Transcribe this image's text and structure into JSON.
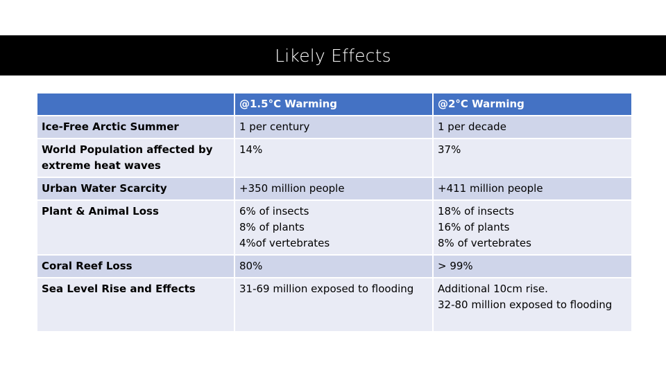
{
  "slide": {
    "title": "Likely Effects"
  },
  "table": {
    "headers": [
      "",
      "@1.5°C Warming",
      "@2°C Warming"
    ],
    "rows": [
      {
        "label": "Ice-Free Arctic Summer",
        "c15": [
          "1 per century"
        ],
        "c2": [
          "1 per decade"
        ]
      },
      {
        "label": "World Population affected by extreme heat waves",
        "c15": [
          "14%"
        ],
        "c2": [
          "37%"
        ]
      },
      {
        "label": "Urban Water Scarcity",
        "c15": [
          "+350 million people"
        ],
        "c2": [
          "+411 million people"
        ]
      },
      {
        "label": "Plant & Animal Loss",
        "c15": [
          "6% of insects",
          "8% of plants",
          "4%of vertebrates"
        ],
        "c2": [
          "18% of insects",
          "16% of plants",
          "8% of vertebrates"
        ]
      },
      {
        "label": "Coral Reef Loss",
        "c15": [
          "80%"
        ],
        "c2": [
          "> 99%"
        ]
      },
      {
        "label": "Sea Level Rise and Effects",
        "c15": [
          "31-69 million exposed to flooding"
        ],
        "c2": [
          "Additional 10cm rise.",
          "32-80 million exposed to flooding"
        ]
      }
    ]
  },
  "colors": {
    "header_bg": "#4472C4",
    "row_odd_bg": "#CFD5EA",
    "row_even_bg": "#E9EBF5",
    "title_bar_bg": "#000000"
  }
}
